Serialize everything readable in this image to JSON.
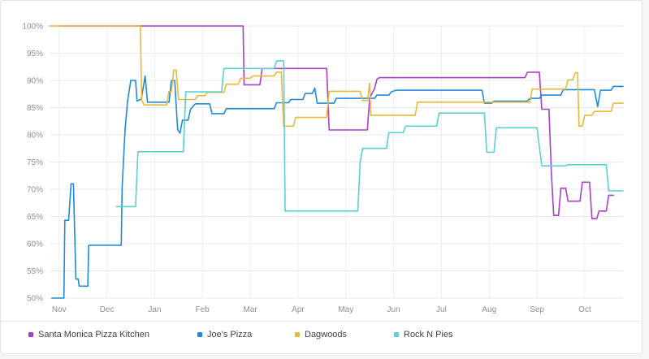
{
  "chart_data": {
    "type": "line",
    "title": "",
    "xlabel": "",
    "ylabel": "",
    "x_ticks": [
      "Nov",
      "Dec",
      "Jan",
      "Feb",
      "Mar",
      "Apr",
      "May",
      "Jun",
      "Jul",
      "Aug",
      "Sep",
      "Oct"
    ],
    "y_ticks": [
      "50%",
      "55%",
      "60%",
      "65%",
      "70%",
      "75%",
      "80%",
      "85%",
      "90%",
      "95%",
      "100%"
    ],
    "ylim": [
      50,
      100
    ],
    "xlim": [
      -0.2,
      11.8
    ],
    "grid": true,
    "legend_position": "bottom",
    "series": [
      {
        "name": "Santa Monica Pizza Kitchen",
        "color": "#a640c9",
        "points": [
          [
            0.0,
            100
          ],
          [
            3.85,
            100
          ],
          [
            3.87,
            89.2
          ],
          [
            4.2,
            89.2
          ],
          [
            4.25,
            92.2
          ],
          [
            5.6,
            92.2
          ],
          [
            5.65,
            80.9
          ],
          [
            6.45,
            80.9
          ],
          [
            6.5,
            86.8
          ],
          [
            6.6,
            88.5
          ],
          [
            6.65,
            90.2
          ],
          [
            6.7,
            90.5
          ],
          [
            9.75,
            90.5
          ],
          [
            9.8,
            91.5
          ],
          [
            10.05,
            91.5
          ],
          [
            10.1,
            84.7
          ],
          [
            10.25,
            84.7
          ],
          [
            10.3,
            73
          ],
          [
            10.35,
            65.2
          ],
          [
            10.45,
            65.2
          ],
          [
            10.5,
            70.2
          ],
          [
            10.6,
            70.2
          ],
          [
            10.65,
            67.8
          ],
          [
            10.9,
            67.8
          ],
          [
            10.95,
            71.3
          ],
          [
            11.1,
            71.3
          ],
          [
            11.15,
            64.6
          ],
          [
            11.25,
            64.6
          ],
          [
            11.3,
            66
          ],
          [
            11.45,
            66
          ],
          [
            11.5,
            68.9
          ],
          [
            11.6,
            68.9
          ]
        ]
      },
      {
        "name": "Joe's Pizza",
        "color": "#1f8ad9",
        "points": [
          [
            -0.15,
            50
          ],
          [
            0.1,
            50
          ],
          [
            0.12,
            64.3
          ],
          [
            0.2,
            64.3
          ],
          [
            0.25,
            71
          ],
          [
            0.3,
            71
          ],
          [
            0.35,
            53.5
          ],
          [
            0.4,
            53.5
          ],
          [
            0.42,
            52.2
          ],
          [
            0.6,
            52.2
          ],
          [
            0.62,
            59.7
          ],
          [
            1.3,
            59.7
          ],
          [
            1.32,
            70.5
          ],
          [
            1.38,
            81
          ],
          [
            1.43,
            86
          ],
          [
            1.5,
            90
          ],
          [
            1.6,
            90
          ],
          [
            1.63,
            86.2
          ],
          [
            1.72,
            86.6
          ],
          [
            1.8,
            90.8
          ],
          [
            1.85,
            86
          ],
          [
            1.95,
            86
          ],
          [
            2.3,
            86
          ],
          [
            2.35,
            90
          ],
          [
            2.42,
            90
          ],
          [
            2.48,
            81
          ],
          [
            2.53,
            80.3
          ],
          [
            2.58,
            82.7
          ],
          [
            2.7,
            82.7
          ],
          [
            2.75,
            84.7
          ],
          [
            2.85,
            85.7
          ],
          [
            3.15,
            85.7
          ],
          [
            3.2,
            83.9
          ],
          [
            3.45,
            83.9
          ],
          [
            3.5,
            84.8
          ],
          [
            4.5,
            84.8
          ],
          [
            4.55,
            85.9
          ],
          [
            4.8,
            85.9
          ],
          [
            4.85,
            86.5
          ],
          [
            5.1,
            86.5
          ],
          [
            5.15,
            87.6
          ],
          [
            5.3,
            87.6
          ],
          [
            5.35,
            88.6
          ],
          [
            5.4,
            85.8
          ],
          [
            5.75,
            85.8
          ],
          [
            5.8,
            86.7
          ],
          [
            6.6,
            86.7
          ],
          [
            6.65,
            87.3
          ],
          [
            6.9,
            87.3
          ],
          [
            6.95,
            87.9
          ],
          [
            7.05,
            88.2
          ],
          [
            8.85,
            88.2
          ],
          [
            8.9,
            85.8
          ],
          [
            9.05,
            85.8
          ],
          [
            9.1,
            86.2
          ],
          [
            9.8,
            86.2
          ],
          [
            9.85,
            86.7
          ],
          [
            10.05,
            86.7
          ],
          [
            10.1,
            87.3
          ],
          [
            10.5,
            87.3
          ],
          [
            10.55,
            88.3
          ],
          [
            11.2,
            88.3
          ],
          [
            11.27,
            85.2
          ],
          [
            11.33,
            88.2
          ],
          [
            11.55,
            88.2
          ],
          [
            11.6,
            88.9
          ],
          [
            11.8,
            88.9
          ]
        ]
      },
      {
        "name": "Dagwoods",
        "color": "#e8b93a",
        "points": [
          [
            -0.2,
            100
          ],
          [
            1.7,
            100
          ],
          [
            1.73,
            86.3
          ],
          [
            1.78,
            85.5
          ],
          [
            2.25,
            85.5
          ],
          [
            2.3,
            88
          ],
          [
            2.35,
            88
          ],
          [
            2.4,
            91.9
          ],
          [
            2.45,
            91.9
          ],
          [
            2.5,
            86.5
          ],
          [
            2.85,
            86.5
          ],
          [
            2.9,
            87.2
          ],
          [
            3.05,
            87.2
          ],
          [
            3.1,
            87.8
          ],
          [
            3.45,
            87.8
          ],
          [
            3.5,
            89.3
          ],
          [
            3.75,
            89.3
          ],
          [
            3.8,
            90.4
          ],
          [
            4.0,
            90.4
          ],
          [
            4.05,
            90.8
          ],
          [
            4.5,
            90.8
          ],
          [
            4.55,
            91.5
          ],
          [
            4.65,
            91.5
          ],
          [
            4.7,
            81.6
          ],
          [
            4.9,
            81.6
          ],
          [
            4.95,
            83.2
          ],
          [
            5.6,
            83.2
          ],
          [
            5.65,
            88
          ],
          [
            6.3,
            88
          ],
          [
            6.35,
            86.3
          ],
          [
            6.45,
            86.3
          ],
          [
            6.5,
            89.5
          ],
          [
            6.52,
            83.6
          ],
          [
            7.45,
            83.6
          ],
          [
            7.5,
            86
          ],
          [
            9.85,
            86
          ],
          [
            9.9,
            88.4
          ],
          [
            10.6,
            88.4
          ],
          [
            10.65,
            90.1
          ],
          [
            10.75,
            90.1
          ],
          [
            10.8,
            91.4
          ],
          [
            10.85,
            91.4
          ],
          [
            10.88,
            81.6
          ],
          [
            10.95,
            81.6
          ],
          [
            11.0,
            83.6
          ],
          [
            11.15,
            83.6
          ],
          [
            11.2,
            84.3
          ],
          [
            11.55,
            84.3
          ],
          [
            11.6,
            85.8
          ],
          [
            11.8,
            85.8
          ]
        ]
      },
      {
        "name": "Rock N Pies",
        "color": "#5ccfd0",
        "points": [
          [
            1.2,
            66.8
          ],
          [
            1.6,
            66.8
          ],
          [
            1.65,
            76.9
          ],
          [
            2.6,
            76.9
          ],
          [
            2.65,
            87.9
          ],
          [
            3.4,
            87.9
          ],
          [
            3.45,
            92.2
          ],
          [
            4.5,
            92.2
          ],
          [
            4.55,
            93.6
          ],
          [
            4.7,
            93.6
          ],
          [
            4.73,
            66
          ],
          [
            6.25,
            66
          ],
          [
            6.3,
            75
          ],
          [
            6.35,
            77.5
          ],
          [
            6.85,
            77.5
          ],
          [
            6.9,
            80.4
          ],
          [
            7.2,
            80.4
          ],
          [
            7.25,
            81.6
          ],
          [
            7.9,
            81.6
          ],
          [
            7.95,
            84
          ],
          [
            8.9,
            84
          ],
          [
            8.95,
            76.8
          ],
          [
            9.1,
            76.8
          ],
          [
            9.15,
            81.3
          ],
          [
            10.0,
            81.3
          ],
          [
            10.1,
            74.3
          ],
          [
            10.6,
            74.3
          ],
          [
            10.65,
            74.5
          ],
          [
            11.45,
            74.5
          ],
          [
            11.5,
            69.7
          ],
          [
            11.8,
            69.7
          ]
        ]
      }
    ]
  },
  "legend": {
    "items": [
      {
        "label": "Santa Monica Pizza Kitchen",
        "color": "#a640c9"
      },
      {
        "label": "Joe's Pizza",
        "color": "#1f8ad9"
      },
      {
        "label": "Dagwoods",
        "color": "#e8b93a"
      },
      {
        "label": "Rock N Pies",
        "color": "#5ccfd0"
      }
    ]
  }
}
